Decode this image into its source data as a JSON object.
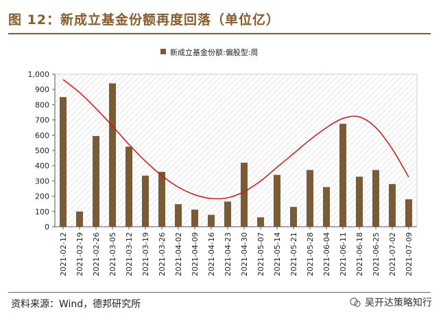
{
  "header": {
    "title": "图 12：新成立基金份额再度回落（单位亿）"
  },
  "footer": {
    "source": "资料来源：Wind，德邦研究所",
    "watermark": "吴开达策略知行"
  },
  "colors": {
    "bar": "#7b5a36",
    "trend": "#e01010",
    "accent": "#8a5a2b"
  },
  "chart_data": {
    "type": "bar",
    "title": "",
    "legend": [
      "新成立基金份额:偏股型:周"
    ],
    "categories": [
      "2021-02-12",
      "2021-02-19",
      "2021-02-26",
      "2021-03-05",
      "2021-03-12",
      "2021-03-19",
      "2021-03-26",
      "2021-04-02",
      "2021-04-09",
      "2021-04-16",
      "2021-04-23",
      "2021-04-30",
      "2021-05-07",
      "2021-05-14",
      "2021-05-21",
      "2021-05-28",
      "2021-06-04",
      "2021-06-11",
      "2021-06-18",
      "2021-06-25",
      "2021-07-02",
      "2021-07-09"
    ],
    "values": [
      850,
      100,
      595,
      940,
      525,
      335,
      360,
      148,
      112,
      78,
      165,
      420,
      62,
      340,
      130,
      372,
      260,
      675,
      328,
      372,
      280,
      180
    ],
    "trendline": [
      965,
      880,
      775,
      660,
      540,
      430,
      335,
      260,
      210,
      185,
      190,
      230,
      300,
      390,
      480,
      570,
      650,
      710,
      720,
      650,
      510,
      325
    ],
    "ylim": [
      0,
      1000
    ],
    "yticks": [
      "0",
      "100",
      "200",
      "300",
      "400",
      "500",
      "600",
      "700",
      "800",
      "900",
      "1,000"
    ],
    "xlabel": "",
    "ylabel": ""
  }
}
